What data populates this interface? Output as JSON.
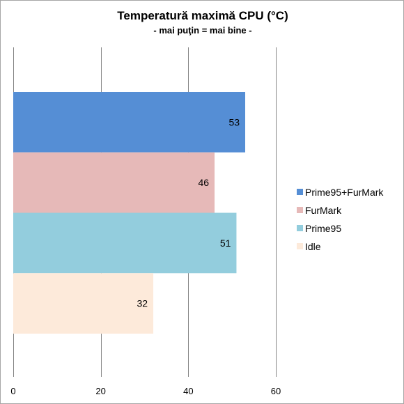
{
  "chart_data": {
    "type": "bar",
    "orientation": "horizontal",
    "title": "Temperatură maximă CPU (°C)",
    "subtitle": "- mai puţin = mai bine -",
    "xlabel": "",
    "ylabel": "",
    "xlim": [
      0,
      60
    ],
    "xticks": [
      0,
      20,
      40,
      60
    ],
    "grid": true,
    "legend_position": "right",
    "series": [
      {
        "name": "Prime95+FurMark",
        "value": 53,
        "color": "#558ed5"
      },
      {
        "name": "FurMark",
        "value": 46,
        "color": "#e6b9b8"
      },
      {
        "name": "Prime95",
        "value": 51,
        "color": "#93cddd"
      },
      {
        "name": "Idle",
        "value": 32,
        "color": "#fdeada"
      }
    ]
  }
}
